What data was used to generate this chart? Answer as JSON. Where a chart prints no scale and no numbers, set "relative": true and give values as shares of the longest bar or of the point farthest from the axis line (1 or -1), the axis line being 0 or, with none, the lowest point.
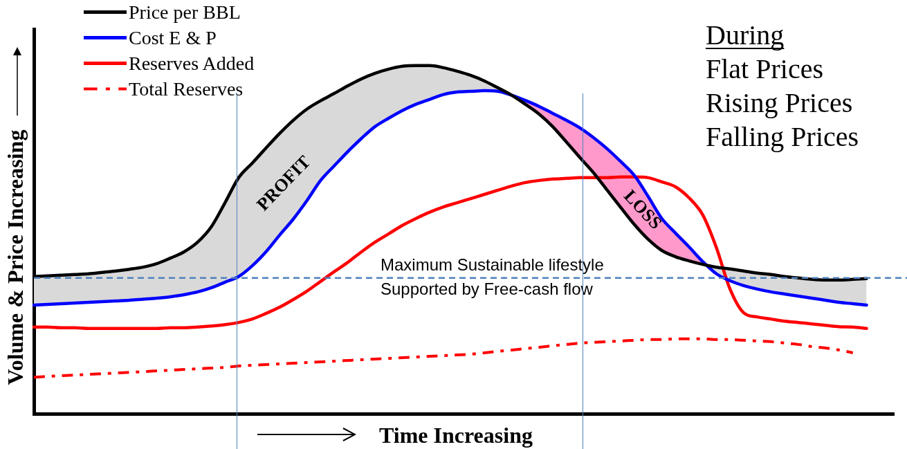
{
  "chart_data": {
    "type": "line",
    "relative": true,
    "xlabel": "Time Increasing",
    "ylabel": "Volume & Price Increasing",
    "legend": "top left",
    "marker": "none",
    "categories": [
      null,
      null,
      null,
      null,
      null,
      null,
      null,
      null,
      null,
      null,
      null,
      null,
      null,
      null,
      null,
      null,
      null,
      null,
      null,
      null,
      null,
      null,
      null,
      null,
      null,
      null,
      null,
      null,
      null,
      null,
      null,
      null,
      null,
      null,
      null,
      null,
      null,
      null,
      null,
      null,
      null,
      null,
      null,
      null,
      null,
      null,
      null,
      null,
      null,
      null,
      null,
      null,
      null,
      null,
      null,
      null,
      null,
      null,
      null,
      null,
      null,
      null,
      null,
      null
    ],
    "series": [
      {
        "name": "Price per BBL",
        "color": "#000000",
        "line_style": "solid",
        "values": [
          0.394,
          0.396,
          0.398,
          0.4,
          0.402,
          0.406,
          0.41,
          0.415,
          0.421,
          0.431,
          0.447,
          0.465,
          0.493,
          0.537,
          0.606,
          0.678,
          0.72,
          0.763,
          0.805,
          0.843,
          0.875,
          0.899,
          0.92,
          0.942,
          0.962,
          0.978,
          0.99,
          0.998,
          1,
          1,
          0.994,
          0.984,
          0.972,
          0.956,
          0.936,
          0.915,
          0.889,
          0.861,
          0.825,
          0.781,
          0.736,
          0.692,
          0.642,
          0.592,
          0.543,
          0.501,
          0.469,
          0.451,
          0.439,
          0.429,
          0.421,
          0.416,
          0.41,
          0.404,
          0.4,
          0.394,
          0.39,
          0.386,
          0.384,
          0.384,
          0.386,
          0.388,
          null,
          null
        ]
      },
      {
        "name": "Cost E & P",
        "color": "#0000ff",
        "line_style": "solid",
        "values": [
          0.312,
          0.314,
          0.316,
          0.318,
          0.32,
          0.322,
          0.324,
          0.326,
          0.329,
          0.332,
          0.336,
          0.342,
          0.35,
          0.362,
          0.378,
          0.394,
          0.425,
          0.465,
          0.513,
          0.559,
          0.612,
          0.67,
          0.712,
          0.753,
          0.791,
          0.825,
          0.849,
          0.871,
          0.889,
          0.903,
          0.917,
          0.924,
          0.926,
          0.928,
          0.926,
          0.915,
          0.9,
          0.883,
          0.863,
          0.843,
          0.821,
          0.793,
          0.761,
          0.724,
          0.684,
          0.624,
          0.561,
          0.519,
          0.479,
          0.437,
          0.402,
          0.382,
          0.368,
          0.358,
          0.35,
          0.344,
          0.338,
          0.332,
          0.326,
          0.32,
          0.316,
          0.312,
          null,
          null
        ]
      },
      {
        "name": "Reserves Added",
        "color": "#ff0000",
        "line_style": "solid",
        "values": [
          0.249,
          0.249,
          0.247,
          0.247,
          0.245,
          0.245,
          0.245,
          0.245,
          0.245,
          0.245,
          0.247,
          0.247,
          0.249,
          0.252,
          0.256,
          0.262,
          0.272,
          0.288,
          0.306,
          0.328,
          0.352,
          0.38,
          0.408,
          0.435,
          0.465,
          0.493,
          0.517,
          0.541,
          0.561,
          0.579,
          0.594,
          0.606,
          0.618,
          0.63,
          0.642,
          0.654,
          0.664,
          0.67,
          0.674,
          0.676,
          0.678,
          0.678,
          0.678,
          0.68,
          0.68,
          0.678,
          0.666,
          0.652,
          0.62,
          0.571,
          0.477,
          0.358,
          0.29,
          0.278,
          0.272,
          0.266,
          0.262,
          0.258,
          0.254,
          0.25,
          0.249,
          0.245,
          null,
          null
        ]
      },
      {
        "name": "Total Reserves",
        "color": "#ff0000",
        "line_style": "dashdot",
        "values": [
          0.105,
          0.107,
          0.109,
          0.111,
          0.113,
          0.115,
          0.117,
          0.119,
          0.121,
          0.123,
          0.125,
          0.127,
          0.129,
          0.131,
          0.133,
          0.137,
          0.139,
          0.141,
          0.143,
          0.145,
          0.147,
          0.149,
          0.151,
          0.153,
          0.155,
          0.157,
          0.159,
          0.161,
          0.163,
          0.165,
          0.167,
          0.169,
          0.171,
          0.175,
          0.179,
          0.183,
          0.187,
          0.191,
          0.195,
          0.199,
          0.203,
          0.205,
          0.207,
          0.209,
          0.211,
          0.213,
          0.213,
          0.215,
          0.215,
          0.215,
          0.213,
          0.213,
          0.211,
          0.209,
          0.207,
          0.203,
          0.199,
          0.193,
          0.189,
          0.183,
          0.175,
          null,
          null,
          null
        ]
      },
      {
        "color": "#d9d9d9",
        "values": [
          null,
          null,
          null,
          null,
          null,
          null,
          null,
          null,
          null,
          null,
          null,
          null,
          null,
          null,
          null,
          null,
          null,
          null,
          null,
          null,
          null,
          null,
          null,
          null,
          null,
          null,
          null,
          null,
          null,
          null,
          null,
          null,
          null,
          null,
          null,
          null,
          null,
          null,
          null,
          null,
          null,
          null,
          null,
          null,
          null,
          null,
          null,
          null,
          null,
          null,
          null,
          null,
          null,
          null,
          null,
          null,
          null,
          null,
          null,
          null,
          null,
          null,
          null,
          null
        ],
        "upper": [
          0.394,
          0.396,
          0.398,
          0.4,
          0.402,
          0.406,
          0.41,
          0.415,
          0.421,
          0.431,
          0.447,
          0.465,
          0.493,
          0.537,
          0.606,
          0.678,
          0.72,
          0.763,
          0.805,
          0.843,
          0.875,
          0.899,
          0.92,
          0.942,
          0.962,
          0.978,
          0.99,
          0.998,
          1,
          1,
          0.994,
          0.984,
          0.972,
          0.956,
          0.936,
          0.915,
          null,
          null,
          null,
          null,
          null,
          null,
          null,
          null,
          null,
          null,
          null,
          null,
          null,
          0.429,
          0.421,
          0.416,
          0.41,
          0.404,
          0.4,
          0.394,
          0.39,
          0.386,
          0.384,
          0.384,
          0.386,
          0.388,
          null,
          null
        ],
        "lower": [
          0.312,
          0.314,
          0.316,
          0.318,
          0.32,
          0.322,
          0.324,
          0.326,
          0.329,
          0.332,
          0.336,
          0.342,
          0.35,
          0.362,
          0.378,
          0.394,
          0.425,
          0.465,
          0.513,
          0.559,
          0.612,
          0.67,
          0.712,
          0.753,
          0.791,
          0.825,
          0.849,
          0.871,
          0.889,
          0.903,
          0.917,
          0.924,
          0.926,
          0.928,
          0.926,
          0.915,
          null,
          null,
          null,
          null,
          null,
          null,
          null,
          null,
          null,
          null,
          null,
          null,
          null,
          0.437,
          0.402,
          0.382,
          0.368,
          0.358,
          0.35,
          0.344,
          0.338,
          0.332,
          0.326,
          0.32,
          0.316,
          0.312,
          null,
          null
        ]
      },
      {
        "color": "#ff99cc",
        "values": [
          null,
          null,
          null,
          null,
          null,
          null,
          null,
          null,
          null,
          null,
          null,
          null,
          null,
          null,
          null,
          null,
          null,
          null,
          null,
          null,
          null,
          null,
          null,
          null,
          null,
          null,
          null,
          null,
          null,
          null,
          null,
          null,
          null,
          null,
          null,
          null,
          null,
          null,
          null,
          null,
          null,
          null,
          null,
          null,
          null,
          null,
          null,
          null,
          null,
          null,
          null,
          null,
          null,
          null,
          null,
          null,
          null,
          null,
          null,
          null,
          null,
          null,
          null,
          null
        ],
        "upper": [
          null,
          null,
          null,
          null,
          null,
          null,
          null,
          null,
          null,
          null,
          null,
          null,
          null,
          null,
          null,
          null,
          null,
          null,
          null,
          null,
          null,
          null,
          null,
          null,
          null,
          null,
          null,
          null,
          null,
          null,
          null,
          null,
          null,
          null,
          null,
          0.915,
          0.9,
          0.883,
          0.863,
          0.843,
          0.821,
          0.793,
          0.761,
          0.724,
          0.684,
          0.624,
          0.561,
          0.519,
          0.479,
          0.437,
          null,
          null,
          null,
          null,
          null,
          null,
          null,
          null,
          null,
          null,
          null,
          null,
          null,
          null
        ],
        "lower": [
          null,
          null,
          null,
          null,
          null,
          null,
          null,
          null,
          null,
          null,
          null,
          null,
          null,
          null,
          null,
          null,
          null,
          null,
          null,
          null,
          null,
          null,
          null,
          null,
          null,
          null,
          null,
          null,
          null,
          null,
          null,
          null,
          null,
          null,
          null,
          0.915,
          0.889,
          0.861,
          0.825,
          0.781,
          0.736,
          0.692,
          0.642,
          0.592,
          0.543,
          0.501,
          0.469,
          0.451,
          0.439,
          0.429,
          null,
          null,
          null,
          null,
          null,
          null,
          null,
          null,
          null,
          null,
          null,
          null,
          null,
          null
        ]
      }
    ],
    "ref_lines": [
      {
        "axis": "y",
        "value": 0.39,
        "label": "Maximum Sustainable lifestyle\nSupported by Free-cash flow",
        "color": "#4f81bd",
        "line_style": "dashed"
      }
    ],
    "annotations": [
      "During",
      "Flat Prices",
      "Rising Prices",
      "Falling Prices",
      "PROFIT",
      "LOSS"
    ]
  }
}
